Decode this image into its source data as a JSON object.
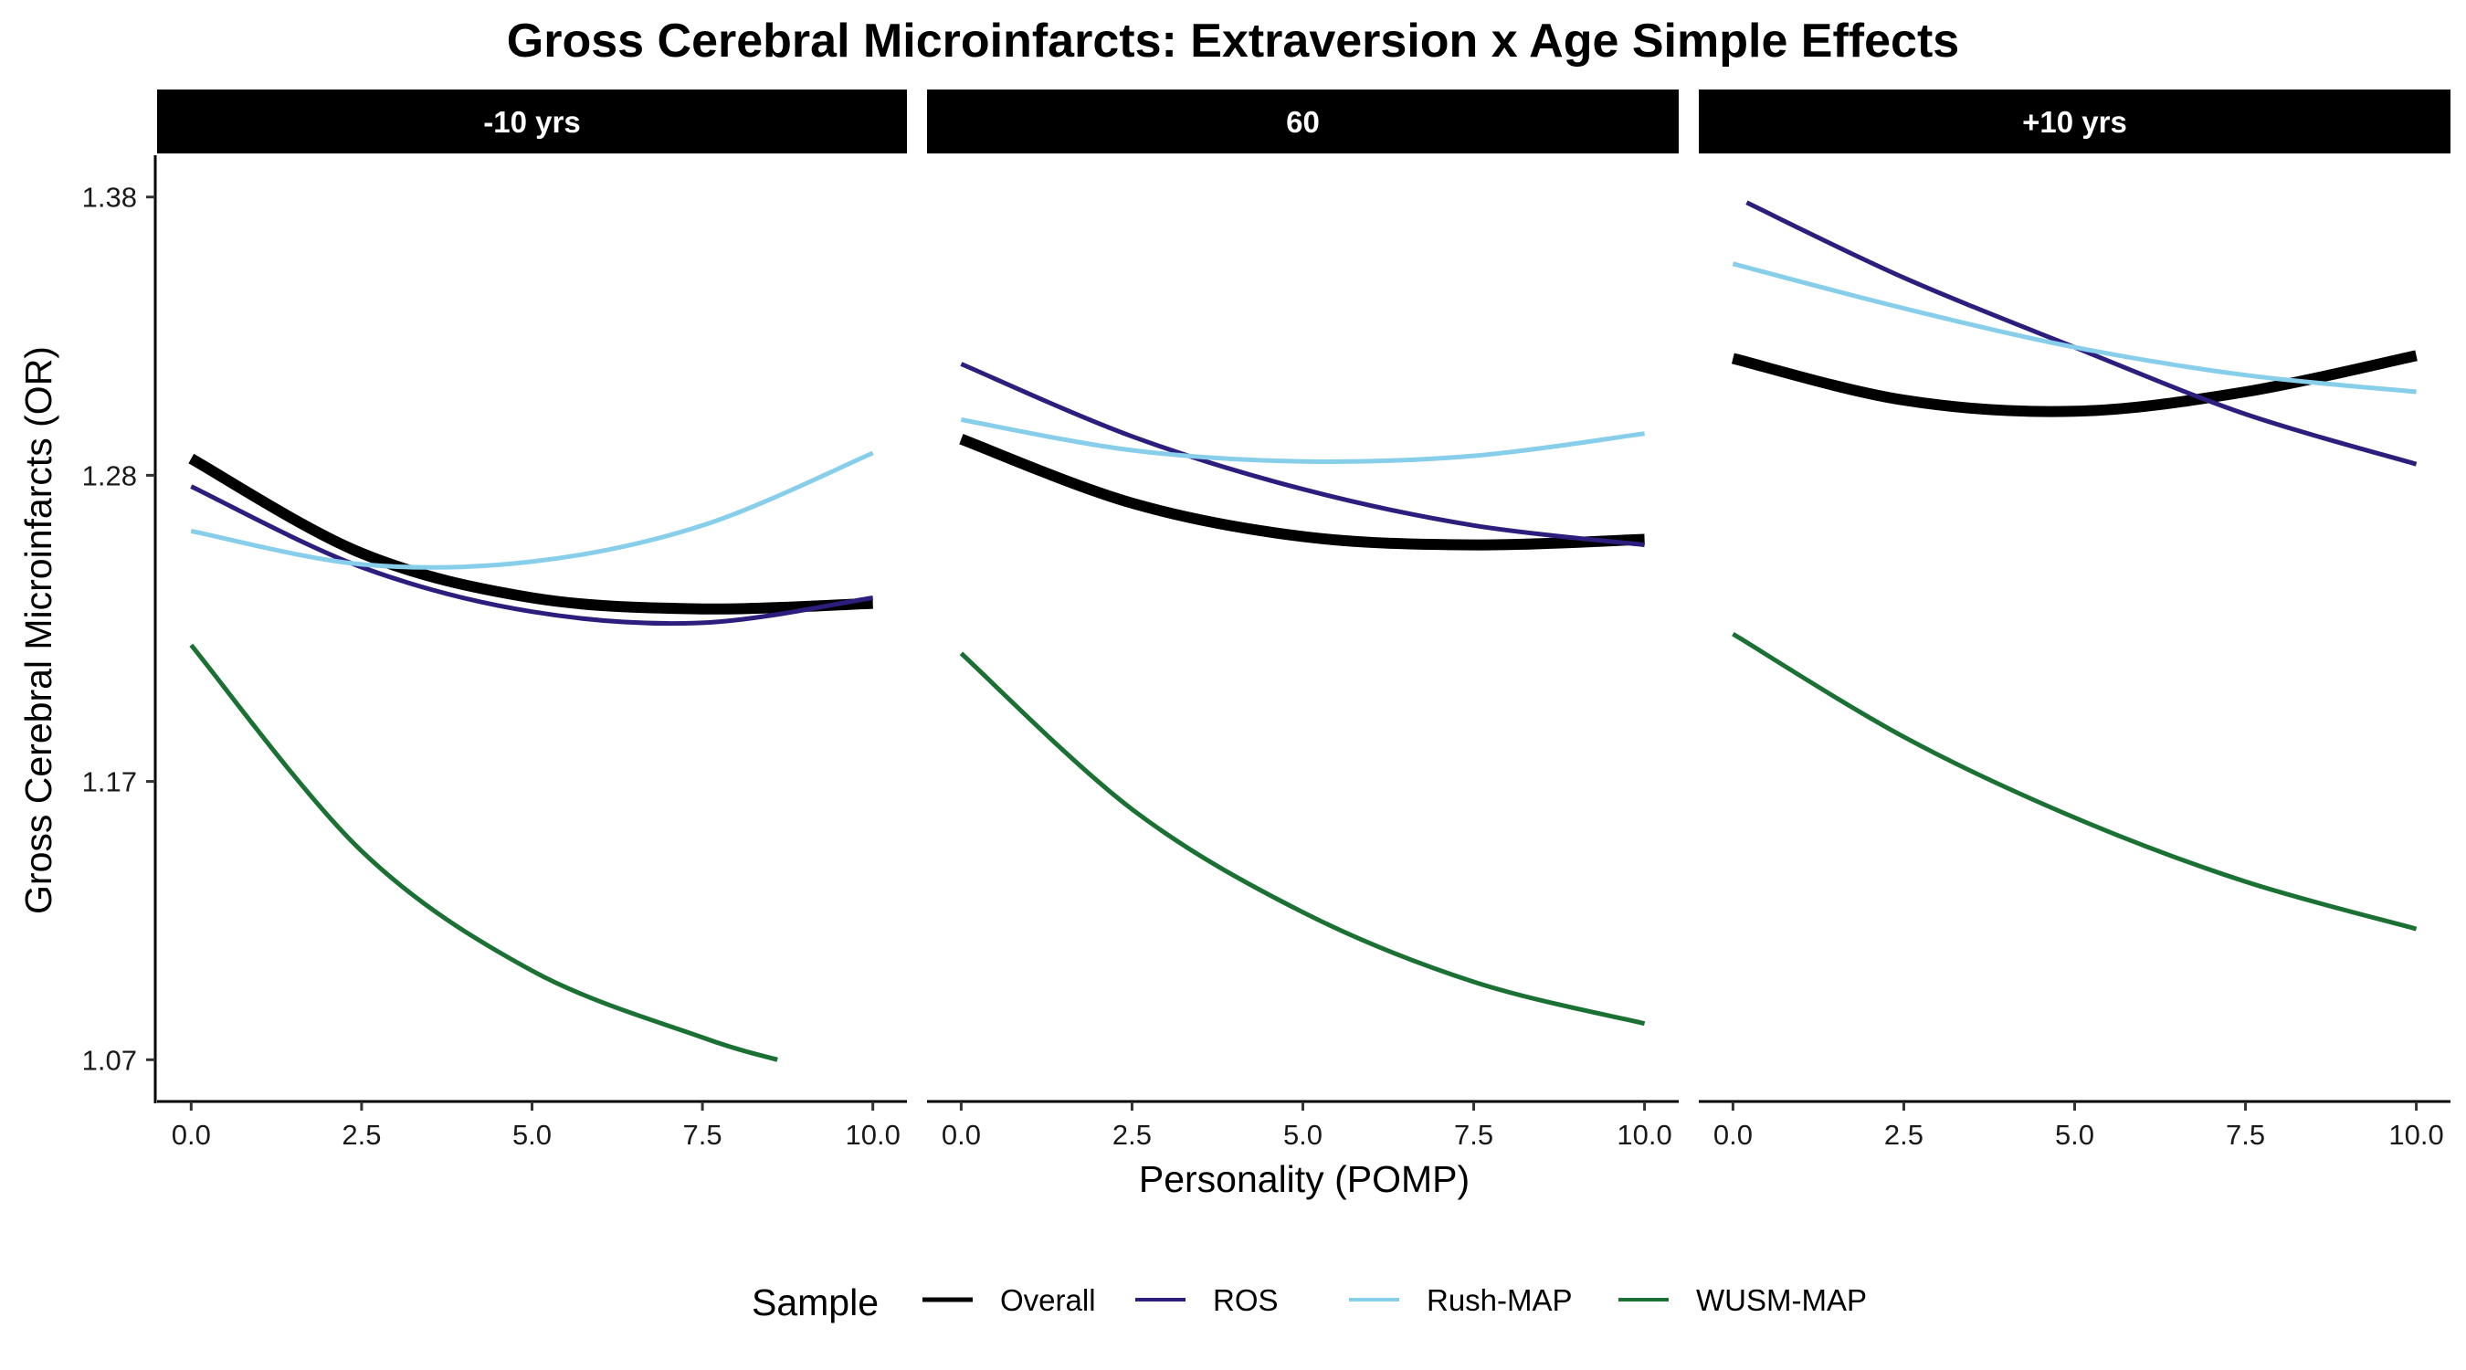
{
  "chart_data": {
    "type": "line",
    "title": "Gross Cerebral Microinfarcts: Extraversion x Age Simple Effects",
    "xlabel": "Personality (POMP)",
    "ylabel": "Gross Cerebral Microinfarcts (OR)",
    "xlim": [
      -0.5,
      10.5
    ],
    "ylim": [
      1.055,
      1.395
    ],
    "x_ticks": [
      0,
      2.5,
      5,
      7.5,
      10
    ],
    "x_tick_labels": [
      "0.0",
      "2.5",
      "5.0",
      "7.5",
      "10.0"
    ],
    "y_ticks": [
      1.07,
      1.17,
      1.28,
      1.38
    ],
    "y_tick_labels": [
      "1.07",
      "1.17",
      "1.28",
      "1.38"
    ],
    "legend": {
      "title": "Sample",
      "position": "bottom",
      "entries": [
        "Overall",
        "ROS",
        "Rush-MAP",
        "WUSM-MAP"
      ]
    },
    "series_styles": [
      {
        "name": "Overall",
        "color": "#000000",
        "width": 12
      },
      {
        "name": "ROS",
        "color": "#2d1e7e",
        "width": 5
      },
      {
        "name": "Rush-MAP",
        "color": "#87ceeb",
        "width": 5
      },
      {
        "name": "WUSM-MAP",
        "color": "#1b7133",
        "width": 5
      }
    ],
    "panels": [
      {
        "label": "-10 yrs",
        "series": [
          {
            "name": "Overall",
            "x": [
              0,
              2.5,
              5,
              7.5,
              10
            ],
            "y": [
              1.286,
              1.252,
              1.236,
              1.232,
              1.234
            ]
          },
          {
            "name": "ROS",
            "x": [
              0,
              2.5,
              5,
              7.5,
              10
            ],
            "y": [
              1.276,
              1.247,
              1.231,
              1.227,
              1.236
            ]
          },
          {
            "name": "Rush-MAP",
            "x": [
              0,
              2.5,
              5,
              7.5,
              10
            ],
            "y": [
              1.26,
              1.248,
              1.249,
              1.262,
              1.288
            ]
          },
          {
            "name": "WUSM-MAP",
            "x": [
              0,
              2.5,
              5,
              7.5,
              8.6
            ],
            "y": [
              1.219,
              1.145,
              1.102,
              1.078,
              1.07
            ]
          }
        ]
      },
      {
        "label": "60",
        "series": [
          {
            "name": "Overall",
            "x": [
              0,
              2.5,
              5,
              7.5,
              10
            ],
            "y": [
              1.293,
              1.27,
              1.258,
              1.255,
              1.257
            ]
          },
          {
            "name": "ROS",
            "x": [
              0,
              2.5,
              5,
              7.5,
              10
            ],
            "y": [
              1.32,
              1.294,
              1.275,
              1.262,
              1.255
            ]
          },
          {
            "name": "Rush-MAP",
            "x": [
              0,
              2.5,
              5,
              7.5,
              10
            ],
            "y": [
              1.3,
              1.289,
              1.285,
              1.287,
              1.295
            ]
          },
          {
            "name": "WUSM-MAP",
            "x": [
              0,
              2.5,
              5,
              7.5,
              10
            ],
            "y": [
              1.216,
              1.16,
              1.123,
              1.098,
              1.083
            ]
          }
        ]
      },
      {
        "label": "+10 yrs",
        "series": [
          {
            "name": "Overall",
            "x": [
              0,
              2.5,
              5,
              7.5,
              10
            ],
            "y": [
              1.322,
              1.307,
              1.303,
              1.31,
              1.323
            ]
          },
          {
            "name": "ROS",
            "x": [
              0.2,
              2.5,
              5,
              7.5,
              10
            ],
            "y": [
              1.378,
              1.351,
              1.326,
              1.302,
              1.284
            ]
          },
          {
            "name": "Rush-MAP",
            "x": [
              0,
              2.5,
              5,
              7.5,
              10
            ],
            "y": [
              1.356,
              1.34,
              1.326,
              1.316,
              1.31
            ]
          },
          {
            "name": "WUSM-MAP",
            "x": [
              0,
              2.5,
              5,
              7.5,
              10
            ],
            "y": [
              1.223,
              1.186,
              1.157,
              1.134,
              1.117
            ]
          }
        ]
      }
    ]
  }
}
